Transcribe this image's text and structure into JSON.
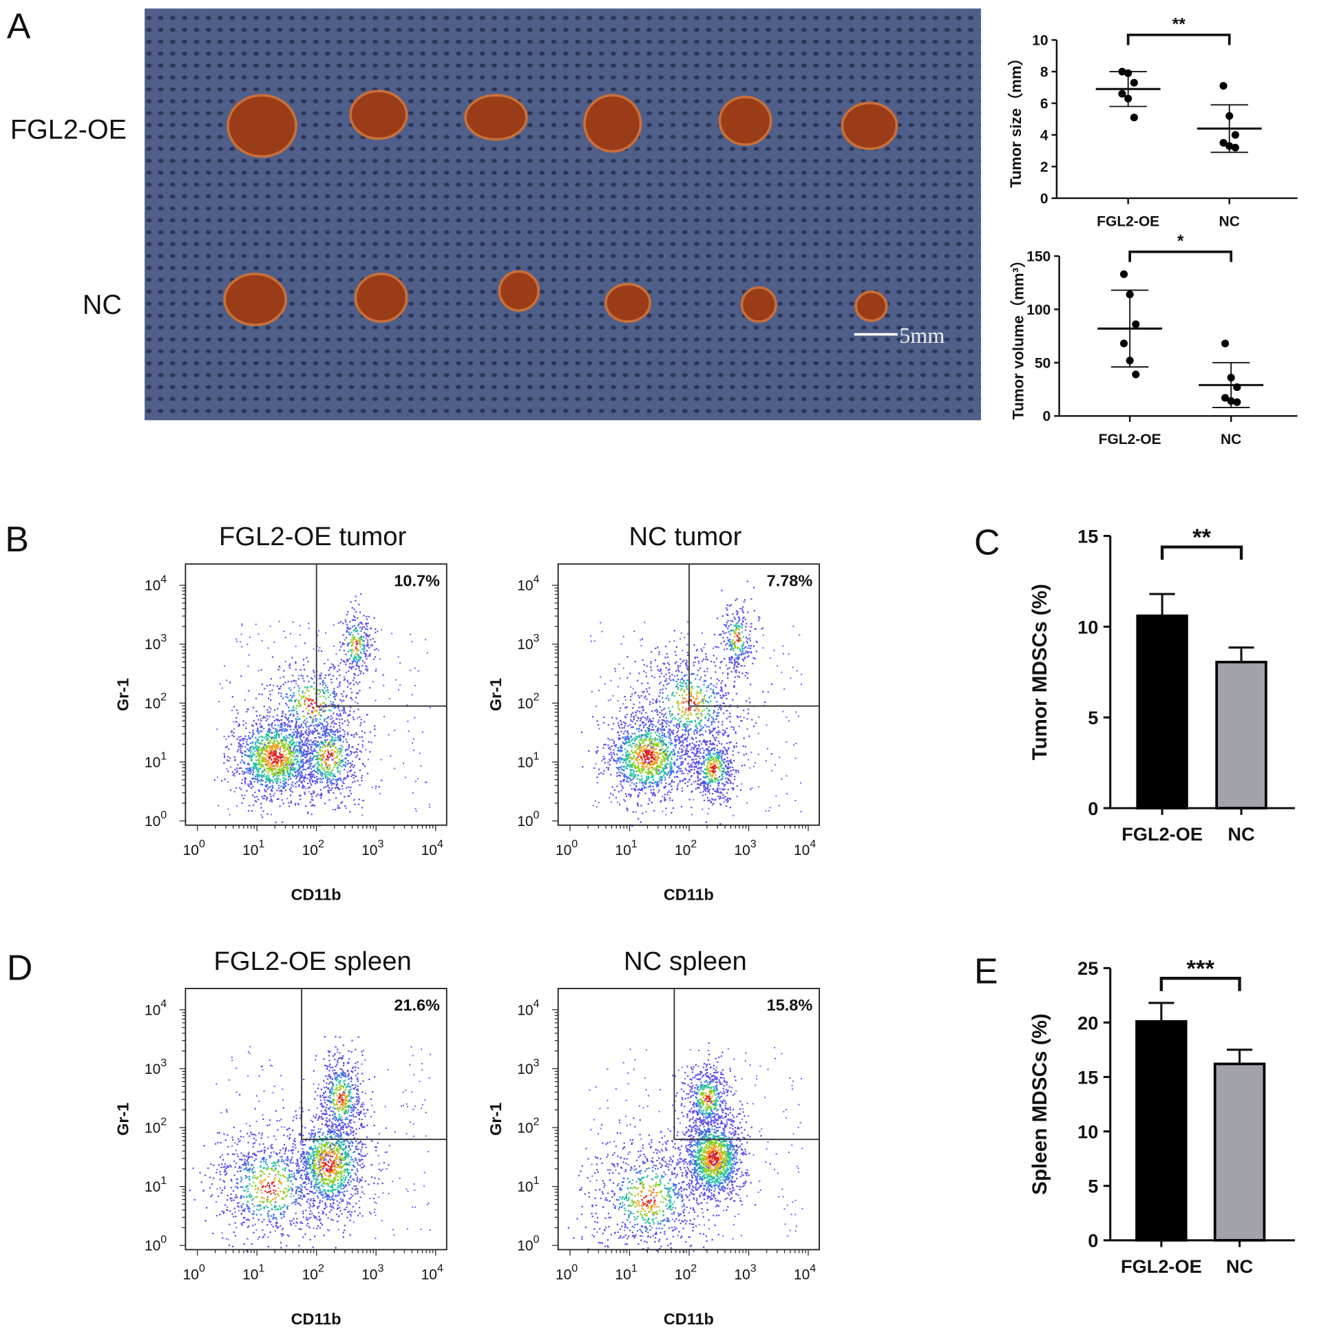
{
  "panel_letters": {
    "a": "A",
    "b": "B",
    "c": "C",
    "d": "D",
    "e": "E"
  },
  "photo": {
    "row_labels": [
      "FGL2-OE",
      "NC"
    ],
    "scale_bar": "5mm",
    "colors": {
      "background": "#4d5c86",
      "tumor": "#9a3c18"
    }
  },
  "chart_data": [
    {
      "id": "A-size",
      "type": "scatter",
      "ylabel": "Tumor size（mm）",
      "categories": [
        "FGL2-OE",
        "NC"
      ],
      "ylim": [
        0,
        10
      ],
      "yticks": [
        0,
        2,
        4,
        6,
        8,
        10
      ],
      "series": [
        {
          "name": "FGL2-OE",
          "values": [
            8.0,
            7.9,
            7.3,
            6.6,
            6.3,
            5.1
          ],
          "mean": 6.9,
          "sd": 1.1
        },
        {
          "name": "NC",
          "values": [
            7.1,
            5.2,
            4.0,
            3.5,
            3.3,
            3.2
          ],
          "mean": 4.4,
          "sd": 1.5
        }
      ],
      "significance": "**"
    },
    {
      "id": "A-volume",
      "type": "scatter",
      "ylabel": "Tumor volume（mm³）",
      "categories": [
        "FGL2-OE",
        "NC"
      ],
      "ylim": [
        0,
        150
      ],
      "yticks": [
        0,
        50,
        100,
        150
      ],
      "series": [
        {
          "name": "FGL2-OE",
          "values": [
            133,
            114,
            86,
            68,
            52,
            39
          ],
          "mean": 82,
          "sd": 36
        },
        {
          "name": "NC",
          "values": [
            68,
            36,
            27,
            17,
            14,
            13
          ],
          "mean": 29,
          "sd": 21
        }
      ],
      "significance": "*"
    },
    {
      "id": "B-FGL2",
      "type": "scatter",
      "title": "FGL2-OE tumor",
      "xlabel": "CD11b",
      "ylabel": "Gr-1",
      "quadrant_percent": "10.7%",
      "gate": [
        2.0,
        1.95
      ],
      "ticks": [
        0,
        1,
        2,
        3,
        4
      ],
      "tick_base": "10",
      "clusters": [
        [
          1.3,
          1.1,
          0.35,
          0.35,
          0.5
        ],
        [
          2.2,
          1.1,
          0.3,
          0.4,
          0.25
        ],
        [
          2.65,
          3.0,
          0.14,
          0.3,
          0.1
        ],
        [
          1.9,
          2.0,
          0.4,
          0.4,
          0.15
        ]
      ]
    },
    {
      "id": "B-NC",
      "type": "scatter",
      "title": "NC tumor",
      "xlabel": "CD11b",
      "ylabel": "Gr-1",
      "quadrant_percent": "7.78%",
      "gate": [
        2.0,
        1.95
      ],
      "ticks": [
        0,
        1,
        2,
        3,
        4
      ],
      "tick_base": "10",
      "clusters": [
        [
          1.3,
          1.1,
          0.35,
          0.35,
          0.45
        ],
        [
          2.4,
          0.9,
          0.2,
          0.3,
          0.2
        ],
        [
          2.8,
          3.1,
          0.14,
          0.3,
          0.1
        ],
        [
          2.0,
          2.0,
          0.45,
          0.45,
          0.25
        ]
      ]
    },
    {
      "id": "C",
      "type": "bar",
      "ylabel": "Tumor MDSCs (%)",
      "categories": [
        "FGL2-OE",
        "NC"
      ],
      "values": [
        10.6,
        8.05
      ],
      "errors": [
        1.2,
        0.8
      ],
      "ylim": [
        0,
        15
      ],
      "yticks": [
        0,
        5,
        10,
        15
      ],
      "significance": "**",
      "colors": [
        "#000000",
        "#a2a2aa"
      ]
    },
    {
      "id": "D-FGL2",
      "type": "scatter",
      "title": "FGL2-OE spleen",
      "xlabel": "CD11b",
      "ylabel": "Gr-1",
      "quadrant_percent": "21.6%",
      "gate": [
        1.75,
        1.8
      ],
      "ticks": [
        0,
        1,
        2,
        3,
        4
      ],
      "tick_base": "10",
      "clusters": [
        [
          2.2,
          1.4,
          0.3,
          0.4,
          0.4
        ],
        [
          2.4,
          2.5,
          0.2,
          0.4,
          0.2
        ],
        [
          1.2,
          1.0,
          0.5,
          0.5,
          0.3
        ]
      ]
    },
    {
      "id": "D-NC",
      "type": "scatter",
      "title": "NC spleen",
      "xlabel": "CD11b",
      "ylabel": "Gr-1",
      "quadrant_percent": "15.8%",
      "gate": [
        1.75,
        1.8
      ],
      "ticks": [
        0,
        1,
        2,
        3,
        4
      ],
      "tick_base": "10",
      "clusters": [
        [
          2.4,
          1.5,
          0.25,
          0.35,
          0.5
        ],
        [
          1.3,
          0.8,
          0.5,
          0.5,
          0.3
        ],
        [
          2.3,
          2.5,
          0.2,
          0.3,
          0.2
        ]
      ]
    },
    {
      "id": "E",
      "type": "bar",
      "ylabel": "Spleen MDSCs (%)",
      "categories": [
        "FGL2-OE",
        "NC"
      ],
      "values": [
        20.1,
        16.2
      ],
      "errors": [
        1.7,
        1.3
      ],
      "ylim": [
        0,
        25
      ],
      "yticks": [
        0,
        5,
        10,
        15,
        20,
        25
      ],
      "significance": "***",
      "colors": [
        "#000000",
        "#a2a2aa"
      ]
    }
  ]
}
